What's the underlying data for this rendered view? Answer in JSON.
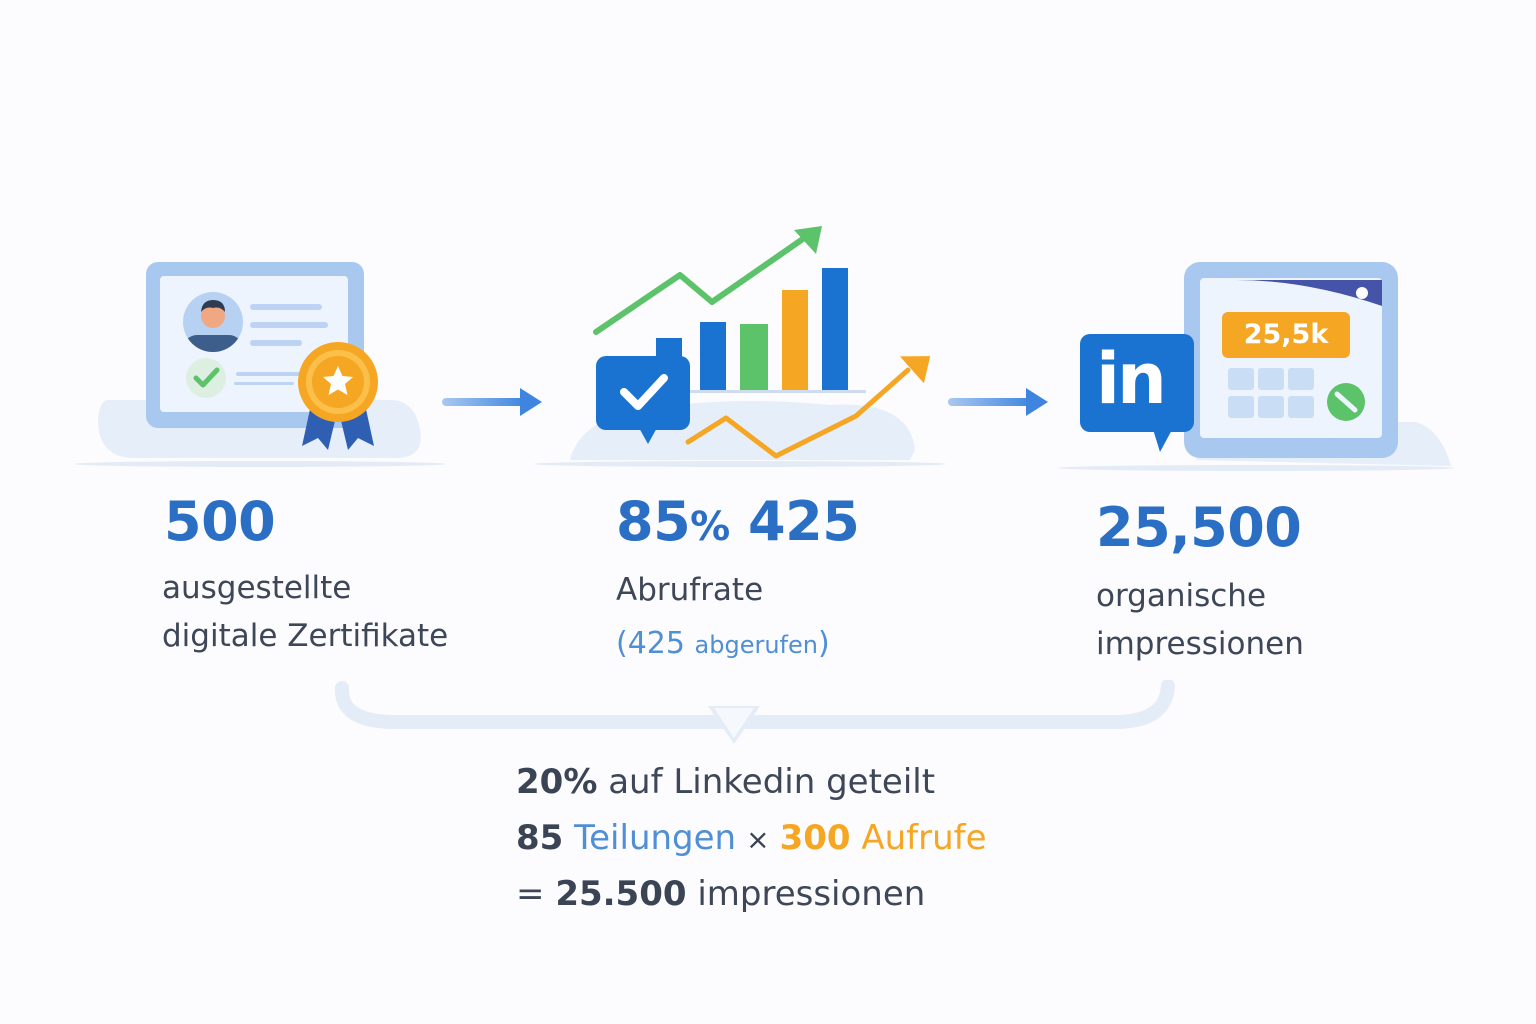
{
  "steps": [
    {
      "number": "500",
      "label_line1": "ausgestellte",
      "label_line2": "digitale Zertifikate"
    },
    {
      "number_pct": "85",
      "number_pct_sign": "%",
      "number_count": "425",
      "label": "Abrufrate",
      "sub_open": "(",
      "sub_num": "425",
      "sub_text": "abgerufen",
      "sub_close": ")"
    },
    {
      "number": "25,500",
      "label_line1": "organische",
      "label_line2": "impressionen",
      "badge": "25,5k",
      "logo_text": "in"
    }
  ],
  "formula": {
    "line1_bold": "20%",
    "line1_text": "auf Linkedin geteilt",
    "line2_num1": "85",
    "line2_text1": "Teilungen",
    "line2_times": "×",
    "line2_num2": "300",
    "line2_text2": "Aufrufe",
    "line3_eq": "=",
    "line3_num": "25.500",
    "line3_text": "impressionen"
  },
  "colors": {
    "primary_blue": "#2a6fc4",
    "light_blue": "#4f8fd6",
    "orange": "#f5a623",
    "green": "#5cc36b",
    "linkedin": "#1a73d1",
    "text": "#3e4757"
  },
  "icons": [
    "certificate-icon",
    "award-ribbon-icon",
    "checkmark-icon",
    "arrow-right-icon",
    "bar-chart-icon",
    "trend-up-icon",
    "chat-check-icon",
    "linkedin-logo-icon",
    "browser-window-icon",
    "chevron-down-icon"
  ]
}
